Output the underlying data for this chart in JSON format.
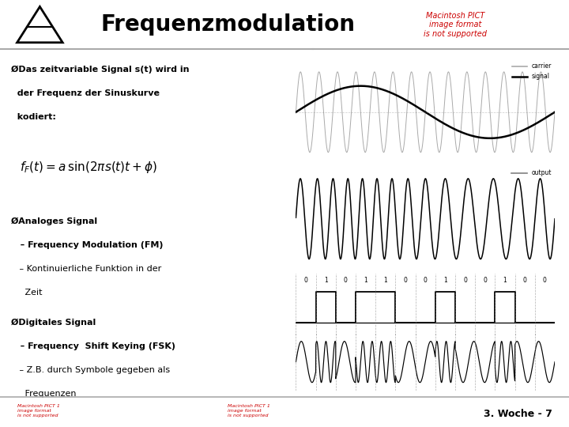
{
  "title": "Frequenzmodulation",
  "title_fontsize": 20,
  "title_fontweight": "bold",
  "background_color": "#ffffff",
  "text_color": "#000000",
  "header_line_color": "#aaaaaa",
  "footer_line_color": "#aaaaaa",
  "footer_text": "3. Woche - 7",
  "bullet1_line1": "ØDas zeitvariable Signal s(t) wird in",
  "bullet1_line2": "  der Frequenz der Sinuskurve",
  "bullet1_line3": "  kodiert:",
  "bullet2_line1": "ØAnaloges Signal",
  "bullet2_line2": "   – Frequency Modulation (FM)",
  "bullet2_line3": "   – Kontinuierliche Funktion in der",
  "bullet2_line4": "     Zeit",
  "bullet3_line1": "ØDigitales Signal",
  "bullet3_line2": "   – Frequency  Shift Keying (FSK)",
  "bullet3_line3": "   – Z.B. durch Symbole gegeben als",
  "bullet3_line4": "     Frequenzen",
  "carrier_color": "#aaaaaa",
  "signal_color": "#000000",
  "fm_color": "#000000",
  "fsk_color": "#000000",
  "digital_color": "#000000",
  "legend_carrier": "carrier",
  "legend_signal": "signal",
  "legend_output": "output",
  "error_text_color": "#cc0000",
  "error_text_top": "Macintosh PICT\nimage format\nis not supported",
  "error_text_bot1": "Macintosh PICT 1\nimage format\nis not supported",
  "error_text_bot2": "Macintosh PICT 1\nimage format\nis not supported",
  "bits": [
    0,
    1,
    0,
    1,
    1,
    0,
    0,
    1,
    0,
    0,
    1,
    0,
    0
  ]
}
